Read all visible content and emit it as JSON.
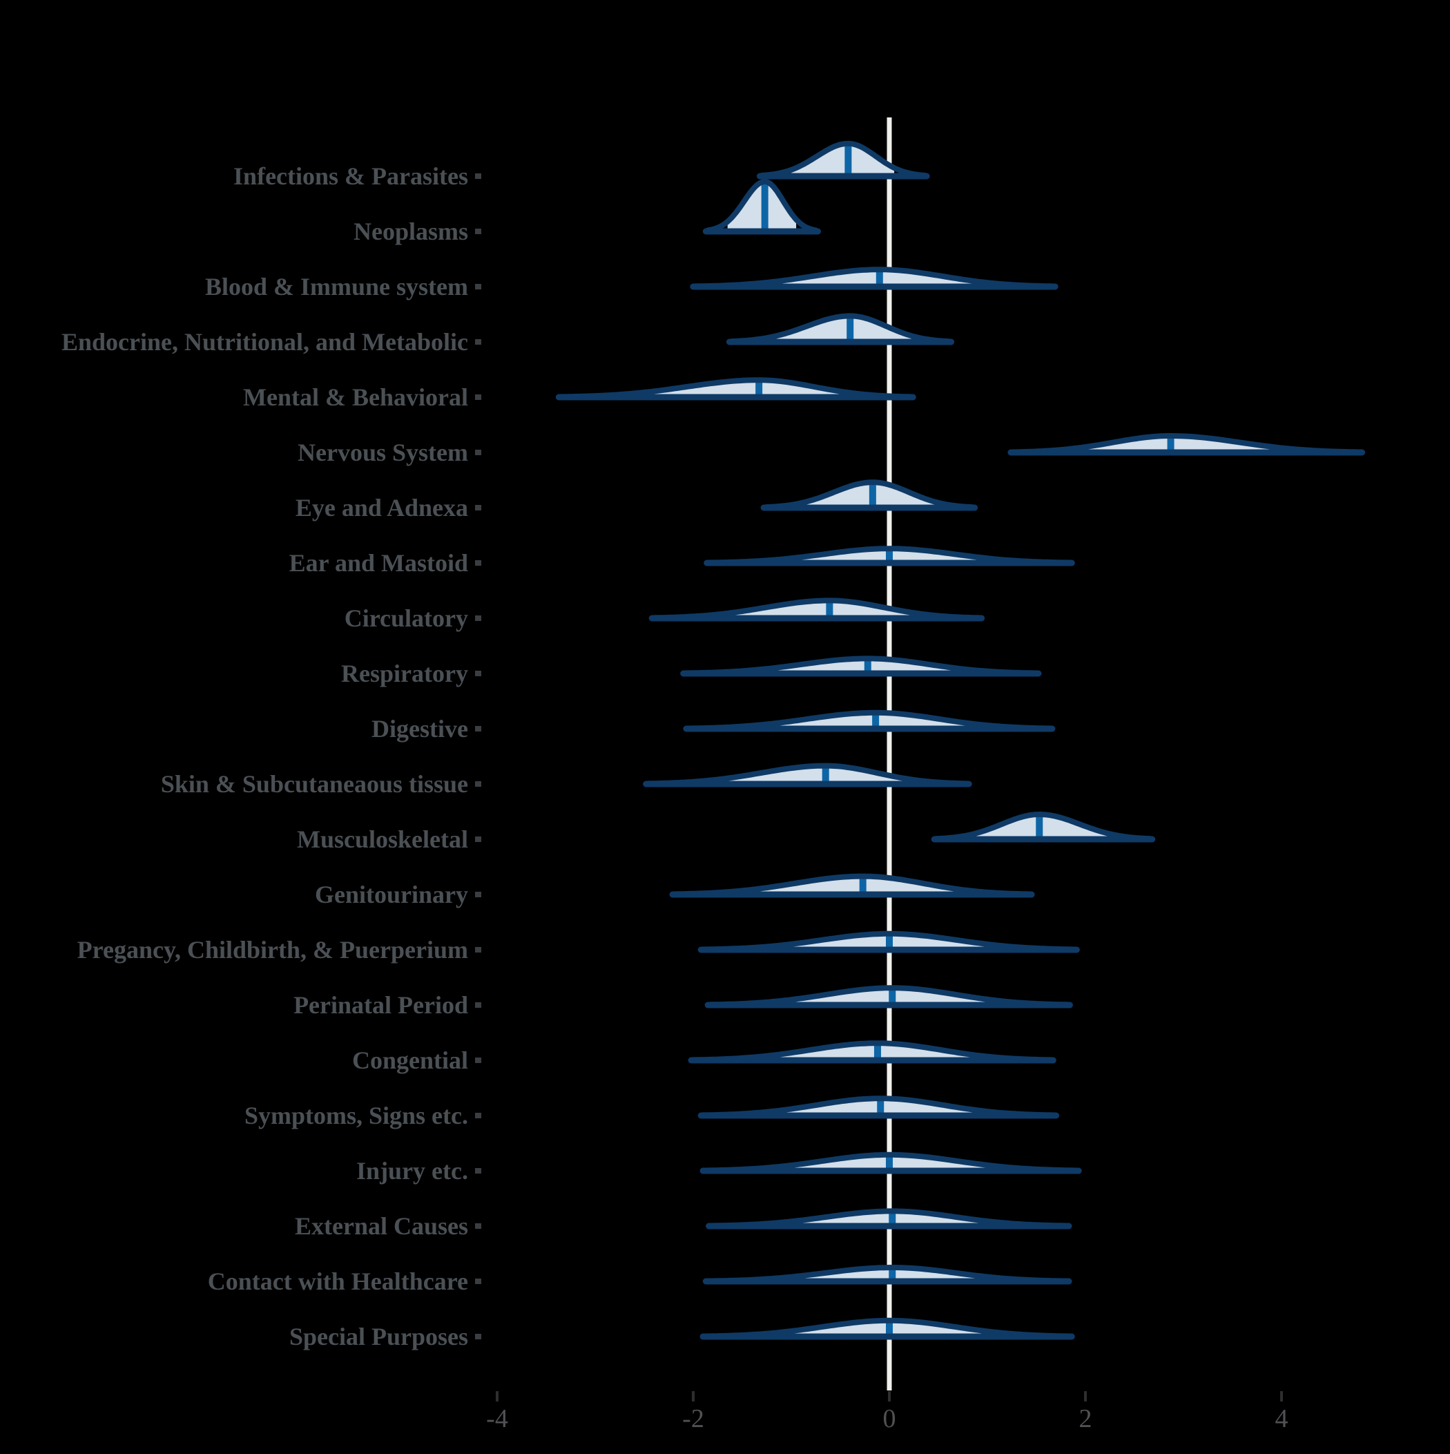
{
  "chart_data": {
    "type": "area",
    "subtype": "ridgeline-halfeye-density",
    "title": "",
    "x_axis": {
      "ticks": [
        -4,
        -2,
        0,
        2,
        4
      ],
      "tick_labels": [
        "-4",
        "-2",
        "0",
        "2",
        "4"
      ],
      "range": [
        -4.9,
        5.7
      ],
      "zero_reference_line": 0,
      "grid": false
    },
    "legend": null,
    "categories": [
      "Infections & Parasites",
      "Neoplasms",
      "Blood & Immune system",
      "Endocrine, Nutritional, and Metabolic",
      "Mental & Behavioral",
      "Nervous System",
      "Eye and Adnexa",
      "Ear and Mastoid",
      "Circulatory",
      "Respiratory",
      "Digestive",
      "Skin & Subcutaneaous tissue",
      "Musculoskeletal",
      "Genitourinary",
      "Pregancy, Childbirth, & Puerperium",
      "Perinatal Period",
      "Congential",
      "Symptoms, Signs etc.",
      "Injury etc.",
      "External Causes",
      "Contact with Healthcare",
      "Special Purposes"
    ],
    "rows": [
      {
        "label": "Infections & Parasites",
        "median": -0.42,
        "range": [
          -1.3,
          0.36
        ],
        "interval": [
          -1.0,
          0.05
        ],
        "peak": 0.59
      },
      {
        "label": "Neoplasms",
        "median": -1.27,
        "range": [
          -1.85,
          -0.75
        ],
        "interval": [
          -1.65,
          -0.95
        ],
        "peak": 0.9
      },
      {
        "label": "Blood & Immune system",
        "median": -0.1,
        "range": [
          -1.98,
          1.67
        ],
        "interval": [
          -1.13,
          1.02
        ],
        "peak": 0.31
      },
      {
        "label": "Endocrine, Nutritional, and Metabolic",
        "median": -0.4,
        "range": [
          -1.61,
          0.61
        ],
        "interval": [
          -1.2,
          0.27
        ],
        "peak": 0.47
      },
      {
        "label": "Mental & Behavioral",
        "median": -1.33,
        "range": [
          -3.35,
          0.22
        ],
        "interval": [
          -2.6,
          -0.33
        ],
        "peak": 0.31
      },
      {
        "label": "Nervous System",
        "median": 2.87,
        "range": [
          1.26,
          4.8
        ],
        "interval": [
          1.81,
          4.1
        ],
        "peak": 0.3
      },
      {
        "label": "Eye and Adnexa",
        "median": -0.17,
        "range": [
          -1.26,
          0.85
        ],
        "interval": [
          -0.85,
          0.55
        ],
        "peak": 0.46
      },
      {
        "label": "Ear and Mastoid",
        "median": 0.0,
        "range": [
          -1.84,
          1.84
        ],
        "interval": [
          -1.2,
          1.16
        ],
        "peak": 0.26
      },
      {
        "label": "Circulatory",
        "median": -0.61,
        "range": [
          -2.4,
          0.92
        ],
        "interval": [
          -1.71,
          0.48
        ],
        "peak": 0.32
      },
      {
        "label": "Respiratory",
        "median": -0.22,
        "range": [
          -2.08,
          1.5
        ],
        "interval": [
          -1.43,
          0.92
        ],
        "peak": 0.27
      },
      {
        "label": "Digestive",
        "median": -0.14,
        "range": [
          -2.05,
          1.64
        ],
        "interval": [
          -1.3,
          0.96
        ],
        "peak": 0.29
      },
      {
        "label": "Skin & Subcutaneaous tissue",
        "median": -0.65,
        "range": [
          -2.46,
          0.79
        ],
        "interval": [
          -1.81,
          0.31
        ],
        "peak": 0.33
      },
      {
        "label": "Musculoskeletal",
        "median": 1.53,
        "range": [
          0.48,
          2.66
        ],
        "interval": [
          0.85,
          2.25
        ],
        "peak": 0.45
      },
      {
        "label": "Genitourinary",
        "median": -0.27,
        "range": [
          -2.19,
          1.43
        ],
        "interval": [
          -1.43,
          0.82
        ],
        "peak": 0.33
      },
      {
        "label": "Pregancy, Childbirth, & Puerperium",
        "median": 0.0,
        "range": [
          -1.9,
          1.89
        ],
        "interval": [
          -1.18,
          1.21
        ],
        "peak": 0.29
      },
      {
        "label": "Perinatal Period",
        "median": 0.03,
        "range": [
          -1.83,
          1.82
        ],
        "interval": [
          -1.15,
          1.24
        ],
        "peak": 0.31
      },
      {
        "label": "Congential",
        "median": -0.12,
        "range": [
          -2.0,
          1.65
        ],
        "interval": [
          -1.56,
          1.07
        ],
        "peak": 0.31
      },
      {
        "label": "Symptoms, Signs etc.",
        "median": -0.09,
        "range": [
          -1.9,
          1.68
        ],
        "interval": [
          -1.28,
          1.04
        ],
        "peak": 0.31
      },
      {
        "label": "Injury etc.",
        "median": 0.0,
        "range": [
          -1.88,
          1.91
        ],
        "interval": [
          -1.14,
          1.17
        ],
        "peak": 0.29
      },
      {
        "label": "External Causes",
        "median": 0.03,
        "range": [
          -1.82,
          1.81
        ],
        "interval": [
          -1.11,
          1.1
        ],
        "peak": 0.27
      },
      {
        "label": "Contact with Healthcare",
        "median": 0.03,
        "range": [
          -1.85,
          1.81
        ],
        "interval": [
          -1.14,
          1.07
        ],
        "peak": 0.25
      },
      {
        "label": "Special Purposes",
        "median": 0.0,
        "range": [
          -1.88,
          1.84
        ],
        "interval": [
          -1.1,
          1.15
        ],
        "peak": 0.29
      }
    ],
    "colors": {
      "background": "#000000",
      "slab_fill": "#d3dfea",
      "outline": "#0f3a66",
      "median_line": "#0d65a6",
      "zero_line": "#efefec",
      "label_text": "#4b5055",
      "axis_tick_text": "#515155",
      "axis_tick_mark": "#2e2e2e",
      "y_tick_square": "#3a3e42"
    }
  }
}
